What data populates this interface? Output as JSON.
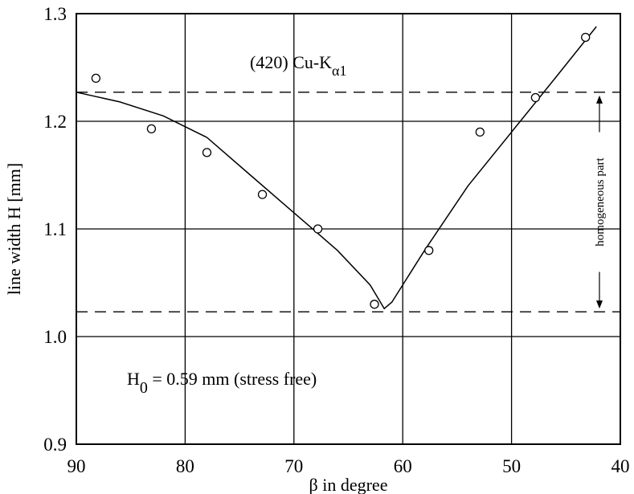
{
  "chart_data": {
    "type": "scatter",
    "xlabel": "β in degree",
    "ylabel": "line width H [mm]",
    "xlim": [
      90,
      40
    ],
    "ylim": [
      0.9,
      1.3
    ],
    "x_ticks": [
      "90",
      "80",
      "70",
      "60",
      "50",
      "40"
    ],
    "y_ticks": [
      "0.9",
      "1.0",
      "1.1",
      "1.2",
      "1.3"
    ],
    "x_tick_values": [
      90,
      80,
      70,
      60,
      50,
      40
    ],
    "y_tick_values": [
      0.9,
      1.0,
      1.1,
      1.2,
      1.3
    ],
    "grid": true,
    "points": [
      {
        "x": 88.2,
        "y": 1.24
      },
      {
        "x": 83.1,
        "y": 1.193
      },
      {
        "x": 78.0,
        "y": 1.171
      },
      {
        "x": 72.9,
        "y": 1.132
      },
      {
        "x": 67.8,
        "y": 1.1
      },
      {
        "x": 62.6,
        "y": 1.03
      },
      {
        "x": 57.6,
        "y": 1.08
      },
      {
        "x": 52.9,
        "y": 1.19
      },
      {
        "x": 47.8,
        "y": 1.222
      },
      {
        "x": 43.2,
        "y": 1.278
      }
    ],
    "fit_curve": [
      {
        "x": 90.0,
        "y": 1.227
      },
      {
        "x": 86.0,
        "y": 1.218
      },
      {
        "x": 82.0,
        "y": 1.205
      },
      {
        "x": 78.0,
        "y": 1.185
      },
      {
        "x": 74.0,
        "y": 1.15
      },
      {
        "x": 70.0,
        "y": 1.115
      },
      {
        "x": 66.0,
        "y": 1.08
      },
      {
        "x": 63.0,
        "y": 1.048
      },
      {
        "x": 61.7,
        "y": 1.026
      },
      {
        "x": 61.0,
        "y": 1.032
      },
      {
        "x": 58.0,
        "y": 1.08
      },
      {
        "x": 54.0,
        "y": 1.14
      },
      {
        "x": 50.0,
        "y": 1.19
      },
      {
        "x": 46.0,
        "y": 1.24
      },
      {
        "x": 42.2,
        "y": 1.288
      }
    ],
    "dashed_lines": [
      1.227,
      1.023
    ],
    "annotations": {
      "title_main": "(420) Cu-K",
      "title_sub": "α1",
      "h0_main": "H",
      "h0_sub": "0",
      "h0_rest": " = 0.59 mm (stress free)",
      "side_label": "homogeneous part"
    }
  }
}
